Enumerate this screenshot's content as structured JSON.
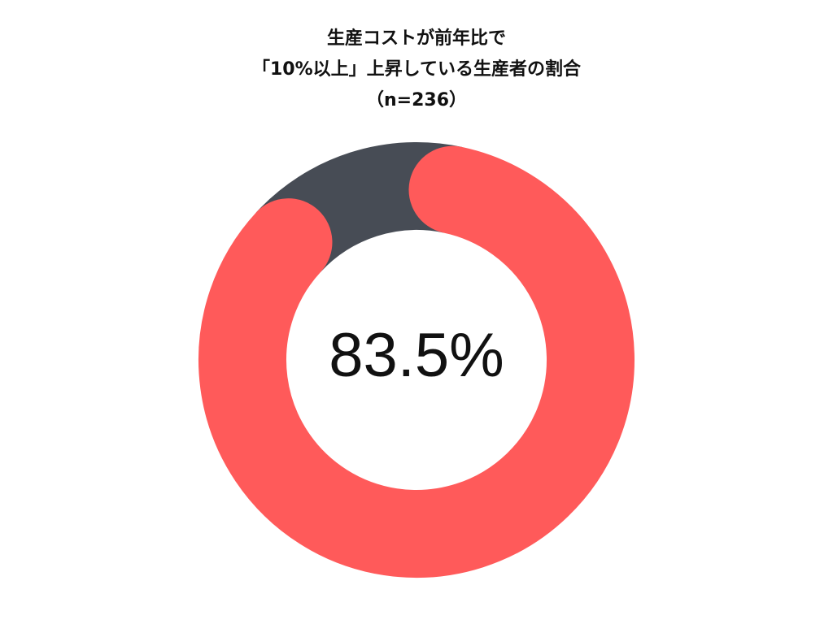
{
  "chart_data": {
    "type": "donut",
    "title": [
      "生産コストが前年比で",
      "「10%以上」上昇している生産者の割合",
      "（n=236）"
    ],
    "categories": [
      null,
      null
    ],
    "values": [
      83.5,
      16.5
    ],
    "colors": [
      "#ff5a5a",
      "#474c55"
    ],
    "center_label": "83.5%"
  }
}
